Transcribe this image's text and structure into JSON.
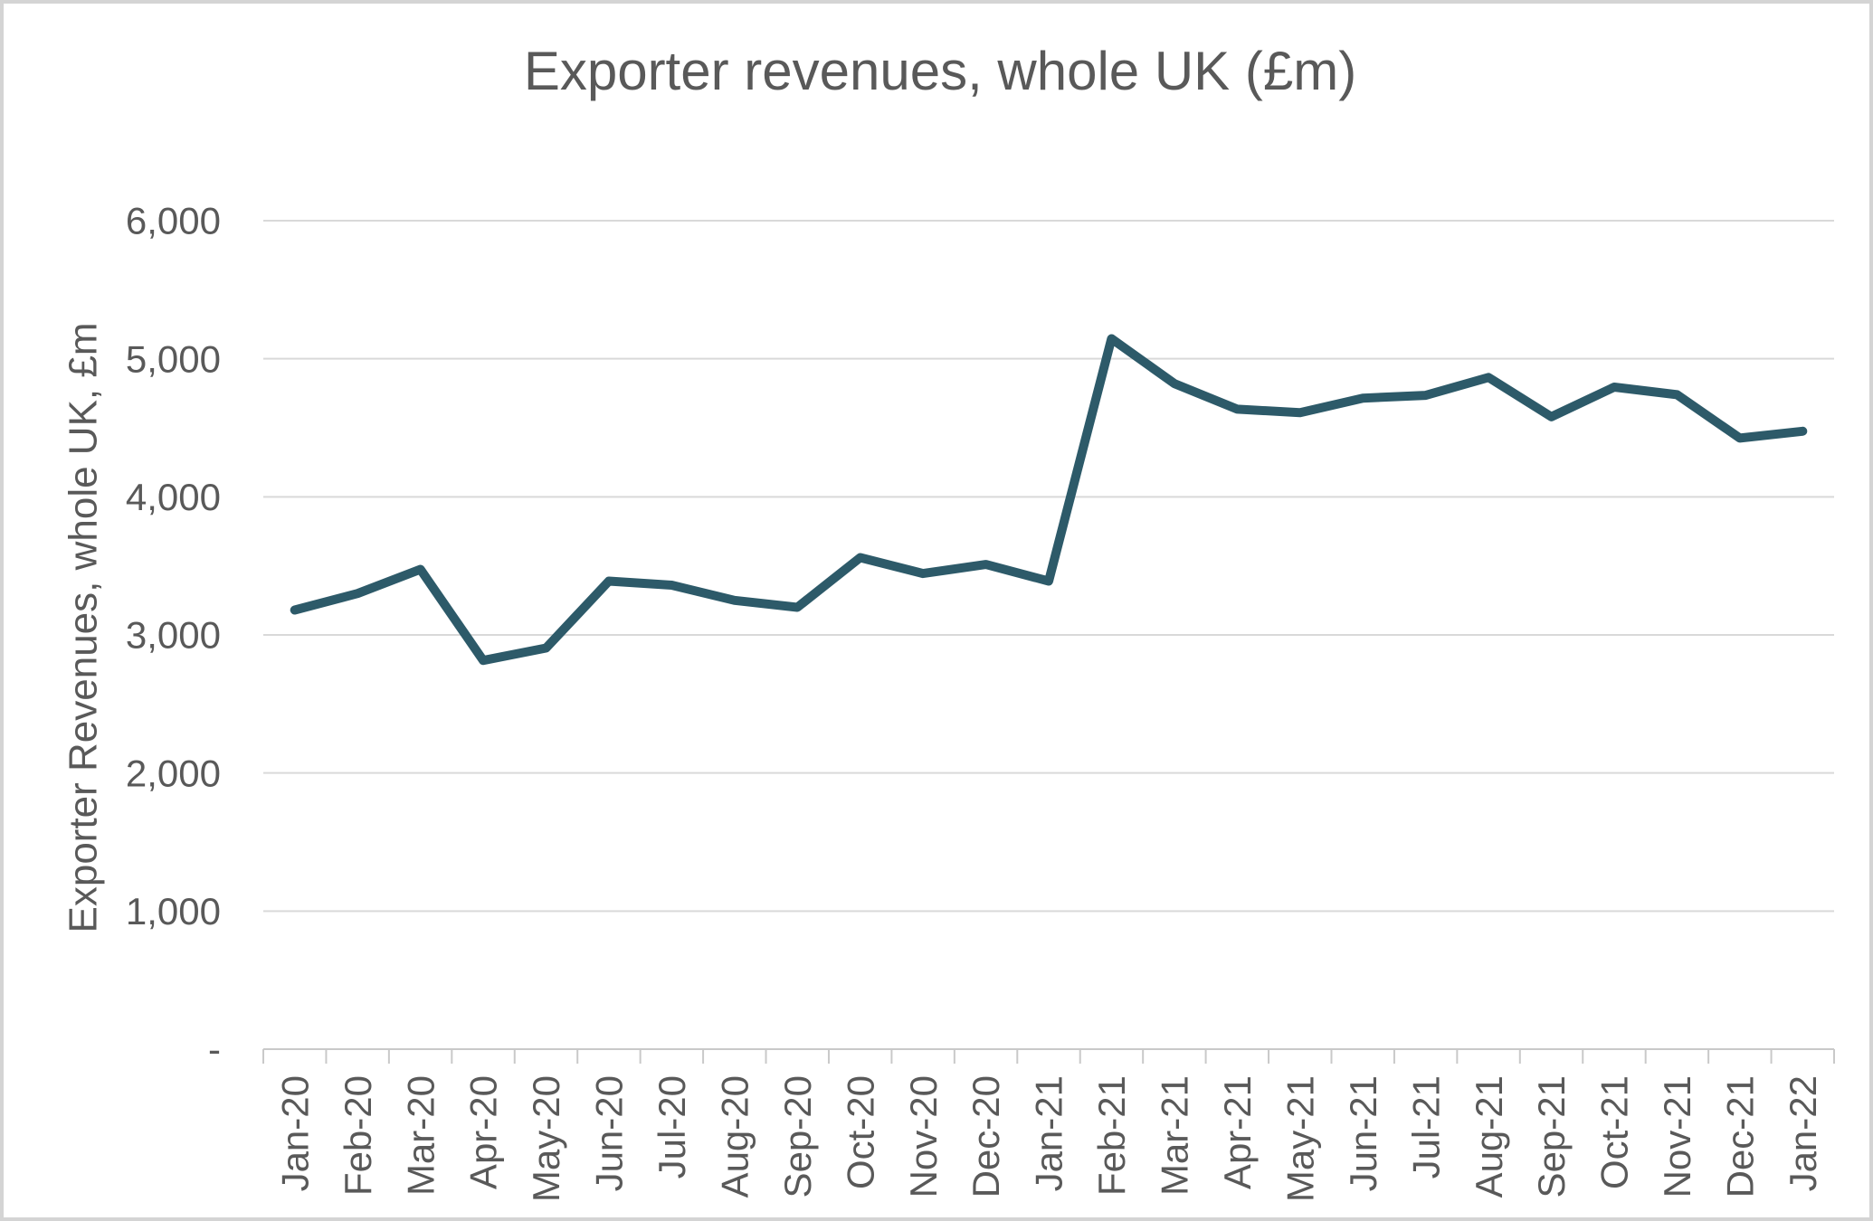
{
  "chart_data": {
    "type": "line",
    "title": "Exporter revenues, whole UK (£m)",
    "ylabel": "Exporter Revenues, whole UK, £m",
    "xlabel": "",
    "series_name": "Exporter revenues, whole UK",
    "categories": [
      "Jan-20",
      "Feb-20",
      "Mar-20",
      "Apr-20",
      "May-20",
      "Jun-20",
      "Jul-20",
      "Aug-20",
      "Sep-20",
      "Oct-20",
      "Nov-20",
      "Dec-20",
      "Jan-21",
      "Feb-21",
      "Mar-21",
      "Apr-21",
      "May-21",
      "Jun-21",
      "Jul-21",
      "Aug-21",
      "Sep-21",
      "Oct-21",
      "Nov-21",
      "Dec-21",
      "Jan-22"
    ],
    "values": [
      3180,
      3300,
      3475,
      2815,
      2905,
      3390,
      3360,
      3250,
      3200,
      3560,
      3445,
      3510,
      3390,
      5145,
      4820,
      4635,
      4610,
      4715,
      4735,
      4865,
      4580,
      4795,
      4740,
      4425,
      4475
    ],
    "ylim": [
      0,
      6000
    ],
    "ytick_values": [
      0,
      1000,
      2000,
      3000,
      4000,
      5000,
      6000
    ],
    "ytick_labels": [
      "-",
      "1,000",
      "2,000",
      "3,000",
      "4,000",
      "5,000",
      "6,000"
    ],
    "grid": true,
    "legend": false,
    "colors": {
      "line": "#2d5a69",
      "text": "#595959",
      "gridline": "#d9d9d9",
      "axis": "#c9c9c9"
    }
  }
}
